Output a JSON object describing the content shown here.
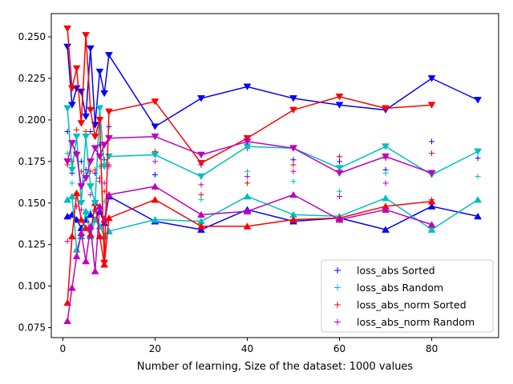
{
  "chart_data": {
    "type": "line",
    "title": "",
    "xlabel": "Number of learning, Size of the dataset: 1000 values",
    "ylabel": "",
    "xlim": [
      -2.5,
      94.5
    ],
    "ylim": [
      0.069,
      0.264
    ],
    "x_ticks": [
      0,
      20,
      40,
      60,
      80
    ],
    "y_ticks": [
      0.075,
      0.1,
      0.125,
      0.15,
      0.175,
      0.2,
      0.225,
      0.25
    ],
    "y_tick_labels": [
      "0.075",
      "0.100",
      "0.125",
      "0.150",
      "0.175",
      "0.200",
      "0.225",
      "0.250"
    ],
    "grid": false,
    "legend_position": "lower-right",
    "legend": [
      {
        "label": "loss_abs Sorted",
        "color": "#0000ff"
      },
      {
        "label": "loss_abs Random",
        "color": "#00bfbf"
      },
      {
        "label": "loss_abs_norm Sorted",
        "color": "#ff0000"
      },
      {
        "label": "loss_abs_norm Random",
        "color": "#bf00bf"
      }
    ],
    "upper_lines": [
      {
        "series": "loss_abs Sorted",
        "color": "#0000ff",
        "marker": "v",
        "points": [
          [
            1,
            0.244
          ],
          [
            2,
            0.209
          ],
          [
            3,
            0.219
          ],
          [
            4,
            0.217
          ],
          [
            5,
            0.202
          ],
          [
            6,
            0.243
          ],
          [
            7,
            0.197
          ],
          [
            8,
            0.229
          ],
          [
            9,
            0.216
          ],
          [
            10,
            0.239
          ],
          [
            20,
            0.196
          ],
          [
            30,
            0.213
          ],
          [
            40,
            0.22
          ],
          [
            50,
            0.213
          ],
          [
            60,
            0.209
          ],
          [
            70,
            0.206
          ],
          [
            80,
            0.225
          ],
          [
            90,
            0.212
          ]
        ]
      },
      {
        "series": "loss_abs Random",
        "color": "#00bfbf",
        "marker": "v",
        "points": [
          [
            1,
            0.207
          ],
          [
            2,
            0.17
          ],
          [
            3,
            0.19
          ],
          [
            4,
            0.15
          ],
          [
            5,
            0.19
          ],
          [
            6,
            0.16
          ],
          [
            7,
            0.15
          ],
          [
            8,
            0.207
          ],
          [
            9,
            0.172
          ],
          [
            10,
            0.178
          ],
          [
            20,
            0.179
          ],
          [
            30,
            0.166
          ],
          [
            40,
            0.184
          ],
          [
            50,
            0.183
          ],
          [
            60,
            0.171
          ],
          [
            70,
            0.184
          ],
          [
            80,
            0.167
          ],
          [
            90,
            0.181
          ]
        ]
      },
      {
        "series": "loss_abs_norm Sorted",
        "color": "#ff0000",
        "marker": "v",
        "points": [
          [
            1,
            0.255
          ],
          [
            2,
            0.219
          ],
          [
            3,
            0.231
          ],
          [
            4,
            0.198
          ],
          [
            5,
            0.251
          ],
          [
            6,
            0.206
          ],
          [
            7,
            0.19
          ],
          [
            8,
            0.2
          ],
          [
            9,
            0.114
          ],
          [
            10,
            0.205
          ],
          [
            20,
            0.211
          ],
          [
            30,
            0.174
          ],
          [
            40,
            0.189
          ],
          [
            50,
            0.206
          ],
          [
            60,
            0.214
          ],
          [
            70,
            0.207
          ],
          [
            80,
            0.209
          ]
        ]
      },
      {
        "series": "loss_abs_norm Random",
        "color": "#bf00bf",
        "marker": "v",
        "points": [
          [
            1,
            0.175
          ],
          [
            2,
            0.186
          ],
          [
            3,
            0.179
          ],
          [
            4,
            0.16
          ],
          [
            5,
            0.165
          ],
          [
            6,
            0.175
          ],
          [
            7,
            0.183
          ],
          [
            8,
            0.178
          ],
          [
            9,
            0.185
          ],
          [
            10,
            0.189
          ],
          [
            20,
            0.19
          ],
          [
            30,
            0.179
          ],
          [
            40,
            0.187
          ],
          [
            50,
            0.183
          ],
          [
            60,
            0.168
          ],
          [
            70,
            0.178
          ],
          [
            80,
            0.168
          ]
        ]
      }
    ],
    "lower_lines": [
      {
        "series": "loss_abs Sorted",
        "color": "#0000ff",
        "marker": "^",
        "points": [
          [
            1,
            0.142
          ],
          [
            2,
            0.143
          ],
          [
            3,
            0.14
          ],
          [
            4,
            0.135
          ],
          [
            5,
            0.14
          ],
          [
            6,
            0.143
          ],
          [
            7,
            0.14
          ],
          [
            8,
            0.145
          ],
          [
            9,
            0.138
          ],
          [
            10,
            0.154
          ],
          [
            20,
            0.139
          ],
          [
            30,
            0.134
          ],
          [
            40,
            0.146
          ],
          [
            50,
            0.139
          ],
          [
            60,
            0.141
          ],
          [
            70,
            0.134
          ],
          [
            80,
            0.148
          ],
          [
            90,
            0.142
          ]
        ]
      },
      {
        "series": "loss_abs Random",
        "color": "#00bfbf",
        "marker": "^",
        "points": [
          [
            1,
            0.152
          ],
          [
            2,
            0.154
          ],
          [
            3,
            0.122
          ],
          [
            4,
            0.13
          ],
          [
            5,
            0.145
          ],
          [
            6,
            0.13
          ],
          [
            7,
            0.14
          ],
          [
            8,
            0.136
          ],
          [
            9,
            0.13
          ],
          [
            10,
            0.133
          ],
          [
            20,
            0.14
          ],
          [
            30,
            0.139
          ],
          [
            40,
            0.154
          ],
          [
            50,
            0.143
          ],
          [
            60,
            0.142
          ],
          [
            70,
            0.153
          ],
          [
            80,
            0.134
          ],
          [
            90,
            0.152
          ]
        ]
      },
      {
        "series": "loss_abs_norm Sorted",
        "color": "#ff0000",
        "marker": "^",
        "points": [
          [
            1,
            0.09
          ],
          [
            2,
            0.13
          ],
          [
            3,
            0.156
          ],
          [
            4,
            0.14
          ],
          [
            5,
            0.135
          ],
          [
            6,
            0.131
          ],
          [
            7,
            0.15
          ],
          [
            8,
            0.13
          ],
          [
            9,
            0.113
          ],
          [
            10,
            0.141
          ],
          [
            20,
            0.152
          ],
          [
            30,
            0.136
          ],
          [
            40,
            0.136
          ],
          [
            50,
            0.14
          ],
          [
            60,
            0.141
          ],
          [
            70,
            0.148
          ],
          [
            80,
            0.151
          ]
        ]
      },
      {
        "series": "loss_abs_norm Random",
        "color": "#bf00bf",
        "marker": "^",
        "points": [
          [
            1,
            0.079
          ],
          [
            2,
            0.099
          ],
          [
            3,
            0.118
          ],
          [
            4,
            0.132
          ],
          [
            5,
            0.115
          ],
          [
            6,
            0.136
          ],
          [
            7,
            0.109
          ],
          [
            8,
            0.148
          ],
          [
            9,
            0.14
          ],
          [
            10,
            0.155
          ],
          [
            20,
            0.16
          ],
          [
            30,
            0.143
          ],
          [
            40,
            0.145
          ],
          [
            50,
            0.155
          ],
          [
            60,
            0.14
          ],
          [
            70,
            0.146
          ],
          [
            80,
            0.137
          ]
        ]
      }
    ],
    "plus_points": [
      {
        "series": "loss_abs Sorted",
        "color": "#0000ff",
        "points": [
          [
            1,
            0.193
          ],
          [
            2,
            0.168
          ],
          [
            3,
            0.18
          ],
          [
            4,
            0.175
          ],
          [
            5,
            0.17
          ],
          [
            6,
            0.193
          ],
          [
            7,
            0.168
          ],
          [
            8,
            0.185
          ],
          [
            9,
            0.176
          ],
          [
            10,
            0.196
          ],
          [
            20,
            0.167
          ],
          [
            30,
            0.173
          ],
          [
            40,
            0.183
          ],
          [
            50,
            0.176
          ],
          [
            60,
            0.175
          ],
          [
            70,
            0.17
          ],
          [
            80,
            0.187
          ],
          [
            90,
            0.177
          ]
        ]
      },
      {
        "series": "loss_abs Random",
        "color": "#00bfbf",
        "points": [
          [
            1,
            0.18
          ],
          [
            2,
            0.162
          ],
          [
            3,
            0.156
          ],
          [
            4,
            0.14
          ],
          [
            5,
            0.168
          ],
          [
            6,
            0.145
          ],
          [
            7,
            0.145
          ],
          [
            8,
            0.172
          ],
          [
            9,
            0.151
          ],
          [
            10,
            0.155
          ],
          [
            20,
            0.159
          ],
          [
            30,
            0.152
          ],
          [
            40,
            0.169
          ],
          [
            50,
            0.163
          ],
          [
            60,
            0.157
          ],
          [
            70,
            0.168
          ],
          [
            80,
            0.15
          ],
          [
            90,
            0.166
          ]
        ]
      },
      {
        "series": "loss_abs_norm Sorted",
        "color": "#ff0000",
        "points": [
          [
            1,
            0.173
          ],
          [
            2,
            0.175
          ],
          [
            3,
            0.194
          ],
          [
            4,
            0.169
          ],
          [
            5,
            0.193
          ],
          [
            6,
            0.169
          ],
          [
            7,
            0.17
          ],
          [
            8,
            0.165
          ],
          [
            9,
            0.157
          ],
          [
            10,
            0.173
          ],
          [
            20,
            0.181
          ],
          [
            30,
            0.155
          ],
          [
            40,
            0.162
          ],
          [
            50,
            0.173
          ],
          [
            60,
            0.178
          ],
          [
            70,
            0.177
          ],
          [
            80,
            0.18
          ]
        ]
      },
      {
        "series": "loss_abs_norm Random",
        "color": "#bf00bf",
        "points": [
          [
            1,
            0.127
          ],
          [
            2,
            0.143
          ],
          [
            3,
            0.148
          ],
          [
            4,
            0.146
          ],
          [
            5,
            0.14
          ],
          [
            6,
            0.155
          ],
          [
            7,
            0.146
          ],
          [
            8,
            0.163
          ],
          [
            9,
            0.162
          ],
          [
            10,
            0.172
          ],
          [
            20,
            0.175
          ],
          [
            30,
            0.161
          ],
          [
            40,
            0.166
          ],
          [
            50,
            0.169
          ],
          [
            60,
            0.154
          ],
          [
            70,
            0.162
          ],
          [
            80,
            0.152
          ]
        ]
      }
    ]
  }
}
